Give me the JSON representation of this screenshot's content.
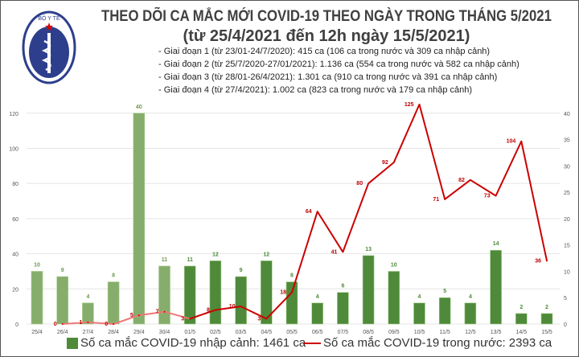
{
  "header": {
    "title_line1": "THEO DÕI CA MẮC MỚI COVID-19 THEO NGÀY TRONG THÁNG 5/2021",
    "title_line2": "(từ 25/4/2021 đến 12h ngày 15/5/2021)",
    "notes": [
      "- Giai đoạn 1 (từ 23/01-24/7/2020): 415 ca (106 ca trong nước và 309 ca nhập cảnh)",
      "- Giai đoạn 2 (từ 25/7/2020-27/01/2021): 1.136 ca (554 ca trong nước và 582 ca nhập cảnh)",
      "- Giai đoạn 3 (từ 28/01-26/4/2021): 1.301 ca (910 ca trong nước và 391 ca nhập cảnh)",
      "- Giai đoạn 4 (từ 27/4/2021): 1.002 ca (823 ca trong nước và 179 ca nhập cảnh)"
    ],
    "logo_text": "BỘ Y TẾ · MINISTRY OF HEALTH"
  },
  "chart_data": {
    "type": "bar+line",
    "categories": [
      "25/4",
      "26/4",
      "27/4",
      "28/4",
      "29/4",
      "30/4",
      "01/5",
      "02/5",
      "03/5",
      "04/5",
      "05/5",
      "06/5",
      "07/5",
      "08/5",
      "09/5",
      "10/5",
      "11/5",
      "12/5",
      "13/5",
      "14/5",
      "15/5"
    ],
    "series": [
      {
        "name": "Số ca mắc COVID-19 nhập cảnh: 1461 ca",
        "type": "bar",
        "axis": "right",
        "values": [
          10,
          9,
          4,
          8,
          40,
          11,
          11,
          12,
          9,
          12,
          8,
          4,
          6,
          13,
          10,
          4,
          5,
          4,
          14,
          2,
          2
        ],
        "color": "#4e8a3a",
        "color_early": "#86ad6c"
      },
      {
        "name": "Số ca mắc COVID-19 trong nước: 2393 ca",
        "type": "line",
        "axis": "left",
        "values": [
          null,
          0,
          1,
          0,
          5,
          7,
          3,
          8,
          10,
          3,
          18,
          64,
          41,
          80,
          92,
          125,
          71,
          82,
          73,
          104,
          36
        ],
        "color": "#cc0000",
        "color_early": "#ee7777"
      }
    ],
    "left_axis": {
      "ticks": [
        0,
        20,
        40,
        60,
        80,
        100,
        120
      ],
      "range": [
        0,
        135
      ]
    },
    "right_axis": {
      "ticks": [
        0,
        5,
        10,
        15,
        20,
        25,
        30,
        35,
        40
      ],
      "range": [
        0,
        45
      ]
    },
    "early_until_index": 6,
    "legend_position": "bottom",
    "grid": true
  }
}
